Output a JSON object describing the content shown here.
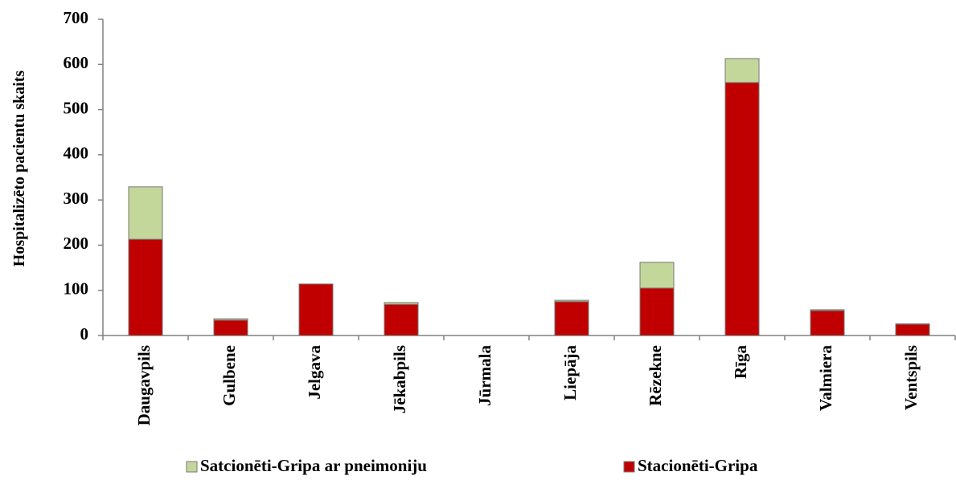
{
  "chart_data": {
    "type": "stacked_bar",
    "y_label": "Hospitalizēto pacientu skaits",
    "categories": [
      "Daugavpils",
      "Gulbene",
      "Jelgava",
      "Jēkabpils",
      "Jūrmala",
      "Liepāja",
      "Rēzekne",
      "Rīga",
      "Valmiera",
      "Ventspils"
    ],
    "series": [
      {
        "name": "Satcionēti-Gripa ar pneimoniju",
        "color": "#c4d79b",
        "values": [
          116,
          3,
          0,
          4,
          0,
          3,
          57,
          53,
          2,
          1
        ]
      },
      {
        "name": "Stacionēti-Gripa",
        "color": "#c00000",
        "values": [
          213,
          34,
          114,
          69,
          0,
          75,
          105,
          560,
          55,
          25
        ]
      }
    ],
    "ylim": [
      0,
      700
    ],
    "yticks": [
      0,
      100,
      200,
      300,
      400,
      500,
      600,
      700
    ],
    "grid": false
  }
}
